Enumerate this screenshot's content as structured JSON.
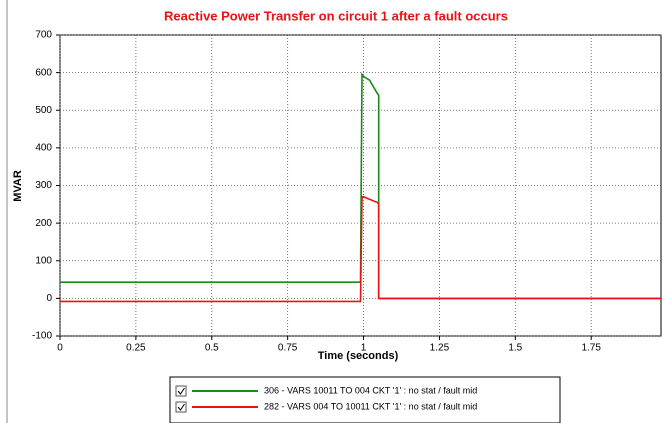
{
  "chart_data": {
    "type": "line",
    "title": "Reactive Power Transfer on circuit 1 after a fault occurs",
    "x_label": "Time (seconds)",
    "y_label": "MVAR",
    "xlim": [
      0,
      1.98
    ],
    "xticks": [
      0,
      0.25,
      0.5,
      0.75,
      1,
      1.25,
      1.5,
      1.75
    ],
    "ylim": [
      -100,
      700
    ],
    "yticks": [
      700,
      600,
      500,
      400,
      300,
      200,
      100,
      0,
      -100
    ],
    "grid": true,
    "series": [
      {
        "name": "306 - VARS 10011 TO 004 CKT '1' : no stat / fault mid",
        "color": "#1a8a1a",
        "x": [
          0,
          0.99,
          0.995,
          1.0,
          1.02,
          1.045,
          1.05,
          1.05,
          1.98
        ],
        "values": [
          43,
          43,
          595,
          590,
          580,
          545,
          540,
          0,
          0
        ]
      },
      {
        "name": "282 - VARS 004 TO 10011 CKT '1' : no stat / fault mid",
        "color": "#ee1111",
        "x": [
          0,
          0.99,
          0.995,
          1.0,
          1.045,
          1.05,
          1.05,
          1.98
        ],
        "values": [
          -8,
          -8,
          270,
          270,
          255,
          252,
          0,
          0
        ]
      }
    ]
  }
}
